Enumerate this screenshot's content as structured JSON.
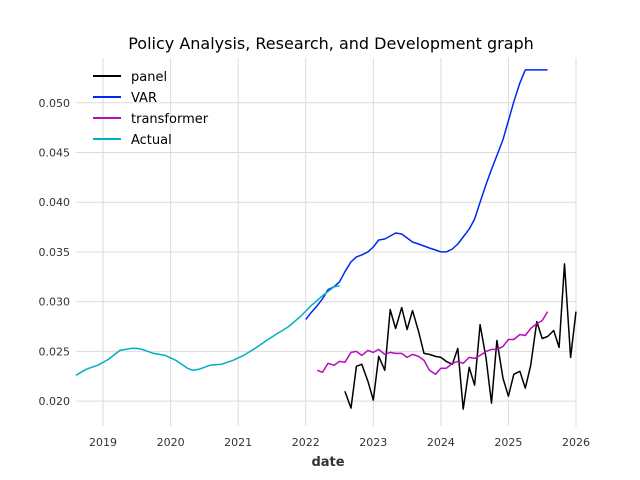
{
  "chart_data": {
    "type": "line",
    "title": "Policy Analysis, Research, and Development graph",
    "xlabel": "date",
    "ylabel": "",
    "xlim": [
      2018.6,
      2026.0
    ],
    "ylim": [
      0.0175,
      0.0545
    ],
    "x_ticks": [
      2019,
      2020,
      2021,
      2022,
      2023,
      2024,
      2025,
      2026
    ],
    "x_tick_labels": [
      "2019",
      "2020",
      "2021",
      "2022",
      "2023",
      "2024",
      "2025",
      "2026"
    ],
    "y_ticks": [
      0.02,
      0.025,
      0.03,
      0.035,
      0.04,
      0.045,
      0.05
    ],
    "y_tick_labels": [
      "0.020",
      "0.025",
      "0.030",
      "0.035",
      "0.040",
      "0.045",
      "0.050"
    ],
    "grid": true,
    "legend_position": "top-left",
    "series": [
      {
        "name": "panel",
        "color": "#000000",
        "x": [
          2022.58,
          2022.67,
          2022.75,
          2022.83,
          2022.92,
          2023.0,
          2023.08,
          2023.17,
          2023.25,
          2023.33,
          2023.42,
          2023.5,
          2023.58,
          2023.67,
          2023.75,
          2023.83,
          2023.92,
          2024.0,
          2024.08,
          2024.17,
          2024.25,
          2024.33,
          2024.42,
          2024.5,
          2024.58,
          2024.67,
          2024.75,
          2024.83,
          2024.92,
          2025.0,
          2025.08,
          2025.17,
          2025.25,
          2025.33,
          2025.42,
          2025.5,
          2025.58,
          2025.67,
          2025.75,
          2025.83,
          2025.92,
          2026.0
        ],
        "y": [
          0.021,
          0.0193,
          0.0235,
          0.0237,
          0.022,
          0.0201,
          0.0245,
          0.0231,
          0.0292,
          0.0273,
          0.0294,
          0.0272,
          0.0291,
          0.027,
          0.0248,
          0.0247,
          0.0245,
          0.0244,
          0.024,
          0.0237,
          0.0253,
          0.0192,
          0.0234,
          0.0216,
          0.0277,
          0.0243,
          0.0198,
          0.0261,
          0.0223,
          0.0205,
          0.0227,
          0.023,
          0.0213,
          0.0236,
          0.028,
          0.0263,
          0.0265,
          0.0271,
          0.0254,
          0.0338,
          0.0244,
          0.029
        ]
      },
      {
        "name": "VAR",
        "color": "#0028ee",
        "x": [
          2022.0,
          2022.08,
          2022.17,
          2022.25,
          2022.33,
          2022.42,
          2022.5,
          2022.58,
          2022.67,
          2022.75,
          2022.83,
          2022.92,
          2023.0,
          2023.08,
          2023.17,
          2023.25,
          2023.33,
          2023.42,
          2023.5,
          2023.58,
          2023.67,
          2023.75,
          2023.83,
          2023.92,
          2024.0,
          2024.08,
          2024.17,
          2024.25,
          2024.33,
          2024.42,
          2024.5,
          2024.58,
          2024.67,
          2024.75,
          2024.83,
          2024.92,
          2025.0,
          2025.08,
          2025.17,
          2025.25,
          2025.33,
          2025.42,
          2025.5,
          2025.58
        ],
        "y": [
          0.0282,
          0.0289,
          0.0296,
          0.0303,
          0.0312,
          0.0315,
          0.032,
          0.033,
          0.034,
          0.0345,
          0.0347,
          0.035,
          0.0355,
          0.0362,
          0.0363,
          0.0366,
          0.0369,
          0.0368,
          0.0364,
          0.036,
          0.0358,
          0.0356,
          0.0354,
          0.0352,
          0.035,
          0.035,
          0.0353,
          0.0358,
          0.0365,
          0.0373,
          0.0383,
          0.04,
          0.0418,
          0.0433,
          0.0447,
          0.0463,
          0.0482,
          0.0501,
          0.052,
          0.0533,
          0.0533,
          0.0533,
          0.0533,
          0.0533
        ]
      },
      {
        "name": "transformer",
        "color": "#b50cbd",
        "x": [
          2022.17,
          2022.25,
          2022.33,
          2022.42,
          2022.5,
          2022.58,
          2022.67,
          2022.75,
          2022.83,
          2022.92,
          2023.0,
          2023.08,
          2023.17,
          2023.25,
          2023.33,
          2023.42,
          2023.5,
          2023.58,
          2023.67,
          2023.75,
          2023.83,
          2023.92,
          2024.0,
          2024.08,
          2024.17,
          2024.25,
          2024.33,
          2024.42,
          2024.5,
          2024.58,
          2024.67,
          2024.75,
          2024.83,
          2024.92,
          2025.0,
          2025.08,
          2025.17,
          2025.25,
          2025.33,
          2025.42,
          2025.5,
          2025.58
        ],
        "y": [
          0.0231,
          0.0229,
          0.0238,
          0.0236,
          0.024,
          0.0239,
          0.0249,
          0.025,
          0.0246,
          0.0251,
          0.0249,
          0.0252,
          0.0247,
          0.0249,
          0.0248,
          0.0248,
          0.0244,
          0.0247,
          0.0245,
          0.0241,
          0.0231,
          0.0227,
          0.0233,
          0.0233,
          0.0238,
          0.024,
          0.0238,
          0.0244,
          0.0243,
          0.0246,
          0.025,
          0.0252,
          0.0252,
          0.0255,
          0.0262,
          0.0262,
          0.0267,
          0.0266,
          0.0273,
          0.0278,
          0.0281,
          0.029
        ]
      },
      {
        "name": "Actual",
        "color": "#00b0c0",
        "x": [
          2018.6,
          2018.75,
          2018.92,
          2019.08,
          2019.25,
          2019.42,
          2019.5,
          2019.58,
          2019.75,
          2019.92,
          2020.08,
          2020.25,
          2020.33,
          2020.42,
          2020.58,
          2020.75,
          2020.92,
          2021.08,
          2021.25,
          2021.42,
          2021.58,
          2021.75,
          2021.92,
          2022.08,
          2022.25,
          2022.42,
          2022.5
        ],
        "y": [
          0.0226,
          0.0232,
          0.0236,
          0.0242,
          0.0251,
          0.0253,
          0.0253,
          0.0252,
          0.0248,
          0.0246,
          0.0241,
          0.0233,
          0.0231,
          0.0232,
          0.0236,
          0.0237,
          0.0241,
          0.0246,
          0.0253,
          0.0261,
          0.0268,
          0.0275,
          0.0285,
          0.0296,
          0.0306,
          0.0315,
          0.0316
        ]
      }
    ]
  }
}
